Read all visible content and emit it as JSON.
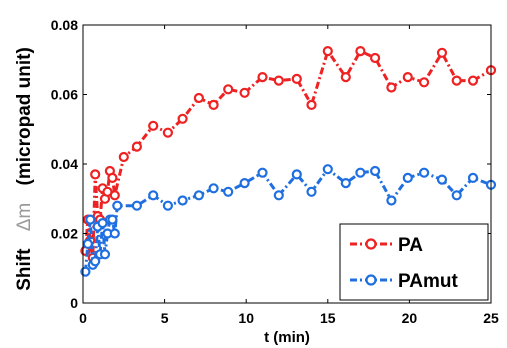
{
  "chart_data": {
    "type": "line",
    "xlabel": "t (min)",
    "ylabel": {
      "prefix": "Shift",
      "symbol": "Δm",
      "suffix": "(micropad unit)"
    },
    "xlim": [
      0,
      25
    ],
    "ylim": [
      0,
      0.08
    ],
    "xticks": [
      0,
      5,
      10,
      15,
      20,
      25
    ],
    "xtick_labels": [
      "0",
      "5",
      "10",
      "15",
      "20",
      "25"
    ],
    "yticks": [
      0,
      0.02,
      0.04,
      0.06,
      0.08
    ],
    "ytick_labels": [
      "0",
      "0.02",
      "0.04",
      "0.06",
      "0.08"
    ],
    "grid": false,
    "legend_position": "bottom-right",
    "series": [
      {
        "name": "PA",
        "color": "#ee2222",
        "line_style": "dash-dot",
        "marker": "circle",
        "x": [
          0.15,
          0.3,
          0.45,
          0.6,
          0.75,
          0.9,
          1.05,
          1.2,
          1.35,
          1.5,
          1.65,
          1.8,
          1.95,
          2.5,
          3.3,
          4.3,
          5.2,
          6.1,
          7.1,
          8.0,
          8.9,
          9.9,
          11.0,
          12.0,
          13.1,
          14.0,
          15.0,
          16.1,
          17.0,
          17.9,
          18.9,
          19.9,
          20.9,
          22.0,
          22.9,
          23.9,
          25.0
        ],
        "y": [
          0.015,
          0.024,
          0.018,
          0.013,
          0.037,
          0.025,
          0.024,
          0.033,
          0.03,
          0.032,
          0.038,
          0.036,
          0.031,
          0.042,
          0.045,
          0.051,
          0.049,
          0.053,
          0.059,
          0.057,
          0.0615,
          0.0605,
          0.065,
          0.064,
          0.0645,
          0.057,
          0.0725,
          0.065,
          0.0725,
          0.0705,
          0.062,
          0.065,
          0.0635,
          0.072,
          0.064,
          0.064,
          0.067
        ]
      },
      {
        "name": "PAmut",
        "color": "#1f6fe0",
        "line_style": "dash-dot",
        "marker": "circle",
        "x": [
          0.15,
          0.3,
          0.45,
          0.6,
          0.75,
          0.9,
          1.05,
          1.2,
          1.35,
          1.5,
          1.65,
          1.8,
          1.95,
          2.1,
          3.3,
          4.3,
          5.2,
          6.1,
          7.1,
          8.0,
          8.9,
          9.9,
          11.0,
          12.0,
          13.1,
          14.0,
          15.0,
          16.1,
          17.0,
          17.9,
          18.9,
          19.9,
          20.9,
          22.0,
          22.9,
          23.9,
          25.0
        ],
        "y": [
          0.009,
          0.017,
          0.024,
          0.011,
          0.012,
          0.022,
          0.014,
          0.023,
          0.014,
          0.02,
          0.024,
          0.024,
          0.02,
          0.028,
          0.028,
          0.031,
          0.028,
          0.0295,
          0.031,
          0.033,
          0.032,
          0.0345,
          0.0375,
          0.031,
          0.037,
          0.032,
          0.0385,
          0.0345,
          0.0375,
          0.038,
          0.0295,
          0.036,
          0.0375,
          0.0355,
          0.031,
          0.036,
          0.034
        ]
      }
    ]
  }
}
